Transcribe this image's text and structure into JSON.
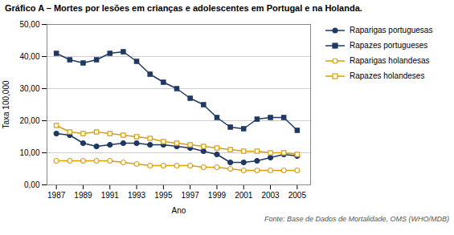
{
  "chart_data": {
    "type": "line",
    "title": "Gráfico A – Mortes por lesões em crianças e adolescentes em Portugal e na Holanda.",
    "xlabel": "Ano",
    "ylabel": "Taxa 100,000",
    "annotations": [
      "Fonte: Base de Dados de Mortalidade, OMS (WHO/MDB)"
    ],
    "x": [
      1987,
      1988,
      1989,
      1990,
      1991,
      1992,
      1993,
      1994,
      1995,
      1996,
      1997,
      1998,
      1999,
      2000,
      2001,
      2002,
      2003,
      2004,
      2005
    ],
    "series": [
      {
        "name": "Raparigas portuguesas",
        "color": "#1F3864",
        "marker": "circle",
        "values": [
          16.0,
          15.5,
          13.0,
          12.0,
          12.5,
          13.0,
          13.0,
          12.5,
          12.5,
          12.0,
          11.5,
          10.5,
          9.5,
          7.0,
          7.0,
          7.5,
          8.5,
          9.5,
          9.0
        ]
      },
      {
        "name": "Rapazes portugueses",
        "color": "#1F3864",
        "marker": "square",
        "values": [
          41.0,
          39.0,
          38.0,
          39.0,
          41.0,
          41.5,
          38.5,
          34.5,
          32.0,
          30.0,
          27.0,
          25.0,
          21.0,
          18.0,
          17.5,
          20.5,
          21.0,
          21.0,
          17.0
        ]
      },
      {
        "name": "Raparigas holandesas",
        "color": "#DAA000",
        "marker": "circle-open",
        "values": [
          7.5,
          7.5,
          7.5,
          7.5,
          7.5,
          7.0,
          6.5,
          6.0,
          6.0,
          6.0,
          6.0,
          5.5,
          5.5,
          5.0,
          4.5,
          4.5,
          4.5,
          4.5,
          4.5
        ]
      },
      {
        "name": "Rapazes holandeses",
        "color": "#DAA000",
        "marker": "square-open",
        "values": [
          18.5,
          16.5,
          16.0,
          16.5,
          16.0,
          15.5,
          15.0,
          14.5,
          13.5,
          13.0,
          12.5,
          12.0,
          11.5,
          11.0,
          10.5,
          10.5,
          10.0,
          10.0,
          9.5
        ]
      }
    ],
    "xlim": [
      1986.3,
      2006.0
    ],
    "xticks": [
      1987,
      1989,
      1991,
      1993,
      1995,
      1997,
      1999,
      2001,
      2003,
      2005
    ],
    "ylim": [
      0,
      50
    ],
    "yticks": [
      {
        "value": 0,
        "label": "0,00"
      },
      {
        "value": 10,
        "label": "10,00"
      },
      {
        "value": 20,
        "label": "20,00"
      },
      {
        "value": 30,
        "label": "30,00"
      },
      {
        "value": 40,
        "label": "40,00"
      },
      {
        "value": 50,
        "label": "50,00"
      }
    ],
    "grid": true,
    "legend": "right"
  }
}
